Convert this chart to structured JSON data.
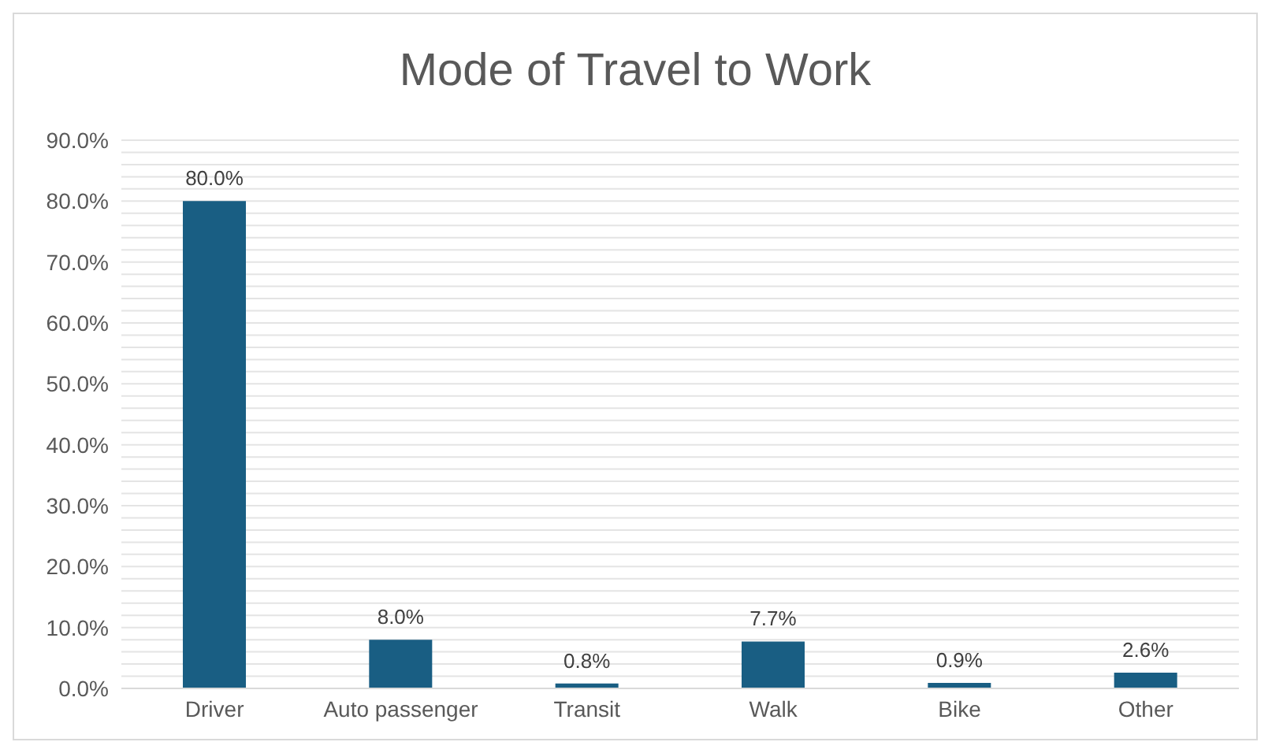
{
  "chart_data": {
    "type": "bar",
    "title": "Mode of Travel to Work",
    "categories": [
      "Driver",
      "Auto passenger",
      "Transit",
      "Walk",
      "Bike",
      "Other"
    ],
    "values": [
      80.0,
      8.0,
      0.8,
      7.7,
      0.9,
      2.6
    ],
    "value_labels": [
      "80.0%",
      "8.0%",
      "0.8%",
      "7.7%",
      "0.9%",
      "2.6%"
    ],
    "color": "#195e83",
    "ylim": [
      0,
      90
    ],
    "yticks": [
      {
        "value": 0,
        "label": "0.0%"
      },
      {
        "value": 2,
        "label": null
      },
      {
        "value": 4,
        "label": null
      },
      {
        "value": 6,
        "label": null
      },
      {
        "value": 8,
        "label": null
      },
      {
        "value": 10,
        "label": "10.0%"
      },
      {
        "value": 12,
        "label": null
      },
      {
        "value": 14,
        "label": null
      },
      {
        "value": 16,
        "label": null
      },
      {
        "value": 18,
        "label": null
      },
      {
        "value": 20,
        "label": "20.0%"
      },
      {
        "value": 22,
        "label": null
      },
      {
        "value": 24,
        "label": null
      },
      {
        "value": 26,
        "label": null
      },
      {
        "value": 28,
        "label": null
      },
      {
        "value": 30,
        "label": "30.0%"
      },
      {
        "value": 32,
        "label": null
      },
      {
        "value": 34,
        "label": null
      },
      {
        "value": 36,
        "label": null
      },
      {
        "value": 38,
        "label": null
      },
      {
        "value": 40,
        "label": "40.0%"
      },
      {
        "value": 42,
        "label": null
      },
      {
        "value": 44,
        "label": null
      },
      {
        "value": 46,
        "label": null
      },
      {
        "value": 48,
        "label": null
      },
      {
        "value": 50,
        "label": "50.0%"
      },
      {
        "value": 52,
        "label": null
      },
      {
        "value": 54,
        "label": null
      },
      {
        "value": 56,
        "label": null
      },
      {
        "value": 58,
        "label": null
      },
      {
        "value": 60,
        "label": "60.0%"
      },
      {
        "value": 62,
        "label": null
      },
      {
        "value": 64,
        "label": null
      },
      {
        "value": 66,
        "label": null
      },
      {
        "value": 68,
        "label": null
      },
      {
        "value": 70,
        "label": "70.0%"
      },
      {
        "value": 72,
        "label": null
      },
      {
        "value": 74,
        "label": null
      },
      {
        "value": 76,
        "label": null
      },
      {
        "value": 78,
        "label": null
      },
      {
        "value": 80,
        "label": "80.0%"
      },
      {
        "value": 82,
        "label": null
      },
      {
        "value": 84,
        "label": null
      },
      {
        "value": 86,
        "label": null
      },
      {
        "value": 88,
        "label": null
      },
      {
        "value": 90,
        "label": "90.0%"
      }
    ],
    "grid": "y"
  }
}
